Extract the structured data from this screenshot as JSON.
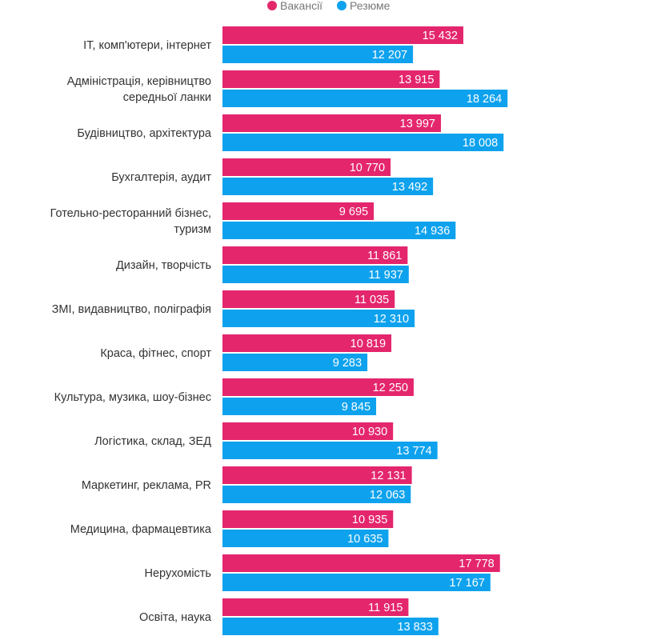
{
  "chart_data": {
    "type": "bar",
    "orientation": "horizontal",
    "legend": {
      "placement": "top-center",
      "items": [
        {
          "name": "Вакансії",
          "color": "#e4266d"
        },
        {
          "name": "Резюме",
          "color": "#0ea2ee"
        }
      ]
    },
    "categories": [
      [
        "IT, комп'ютери, інтернет"
      ],
      [
        "Адміністрація, керівництво",
        "середньої ланки"
      ],
      [
        "Будівництво, архітектура"
      ],
      [
        "Бухгалтерія, аудит"
      ],
      [
        "Готельно-ресторанний бізнес,",
        "туризм"
      ],
      [
        "Дизайн, творчість"
      ],
      [
        "ЗМІ, видавництво, поліграфія"
      ],
      [
        "Краса, фітнес, спорт"
      ],
      [
        "Культура, музика, шоу-бізнес"
      ],
      [
        "Логістика, склад, ЗЕД"
      ],
      [
        "Маркетинг, реклама, PR"
      ],
      [
        "Медицина, фармацевтика"
      ],
      [
        "Нерухомість"
      ],
      [
        "Освіта, наука"
      ]
    ],
    "series": [
      {
        "name": "Вакансії",
        "color": "#e4266d",
        "values": [
          15432,
          13915,
          13997,
          10770,
          9695,
          11861,
          11035,
          10819,
          12250,
          10930,
          12131,
          10935,
          17778,
          11915
        ],
        "labels": [
          "15 432",
          "13 915",
          "13 997",
          "10 770",
          "9 695",
          "11 861",
          "11 035",
          "10 819",
          "12 250",
          "10 930",
          "12 131",
          "10 935",
          "17 778",
          "11 915"
        ]
      },
      {
        "name": "Резюме",
        "color": "#0ea2ee",
        "values": [
          12207,
          18264,
          18008,
          13492,
          14936,
          11937,
          12310,
          9283,
          9845,
          13774,
          12063,
          10635,
          17167,
          13833
        ],
        "labels": [
          "12 207",
          "18 264",
          "18 008",
          "13 492",
          "14 936",
          "11 937",
          "12 310",
          "9 283",
          "9 845",
          "13 774",
          "12 063",
          "10 635",
          "17 167",
          "13 833"
        ]
      }
    ],
    "grid": false
  }
}
